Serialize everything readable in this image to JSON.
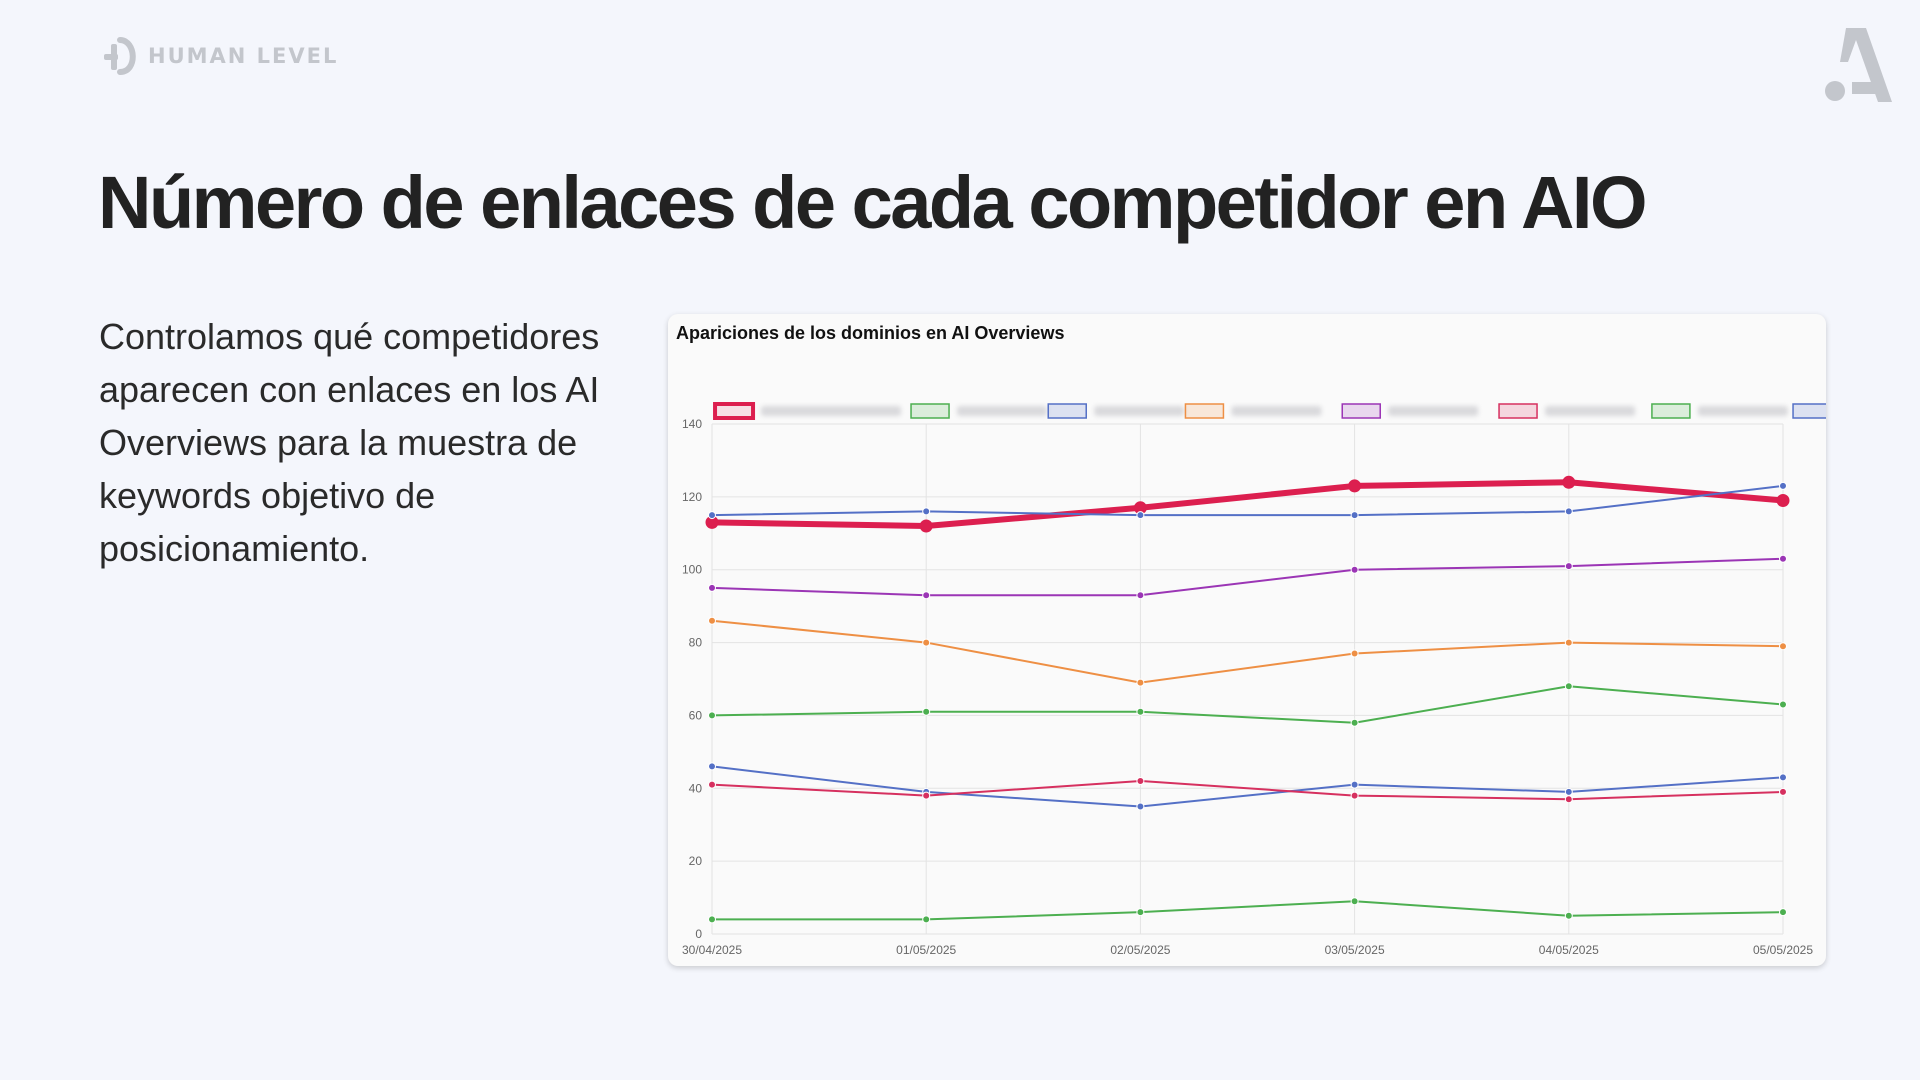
{
  "brand": {
    "left_logo_text": "HUMAN LEVEL",
    "colors": {
      "background": "#f4f6fc",
      "title": "#222222",
      "logo": "#c3c6cc"
    }
  },
  "page": {
    "title": "Número de enlaces de cada competidor en AIO",
    "description": "Controlamos qué competidores aparecen con enlaces en los AI Overviews para la muestra de keywords objetivo de posicionamiento."
  },
  "chart_data": {
    "type": "line",
    "title": "Apariciones de los dominios en AI Overviews",
    "xlabel": "",
    "ylabel": "",
    "x": [
      "30/04/2025",
      "01/05/2025",
      "02/05/2025",
      "03/05/2025",
      "04/05/2025",
      "05/05/2025"
    ],
    "ylim": [
      0,
      140
    ],
    "yticks": [
      0,
      20,
      40,
      60,
      80,
      100,
      120,
      140
    ],
    "grid": true,
    "legend_placement": "top",
    "legend_labels_blurred": true,
    "series": [
      {
        "color": "#dc1f4f",
        "highlight": true,
        "values": [
          113,
          112,
          117,
          123,
          124,
          119
        ]
      },
      {
        "color": "#4caf50",
        "values": [
          4,
          4,
          6,
          9,
          5,
          6
        ]
      },
      {
        "color": "#5470c6",
        "values": [
          46,
          39,
          35,
          41,
          39,
          43
        ]
      },
      {
        "color": "#ee8f44",
        "values": [
          86,
          80,
          69,
          77,
          80,
          79
        ]
      },
      {
        "color": "#9b35b5",
        "values": [
          95,
          93,
          93,
          100,
          101,
          103
        ]
      },
      {
        "color": "#d6305f",
        "values": [
          41,
          38,
          42,
          38,
          37,
          39
        ]
      },
      {
        "color": "#4caf50",
        "values": [
          60,
          61,
          61,
          58,
          68,
          63
        ]
      },
      {
        "color": "#5470c6",
        "values": [
          115,
          116,
          115,
          115,
          116,
          123
        ]
      }
    ]
  }
}
